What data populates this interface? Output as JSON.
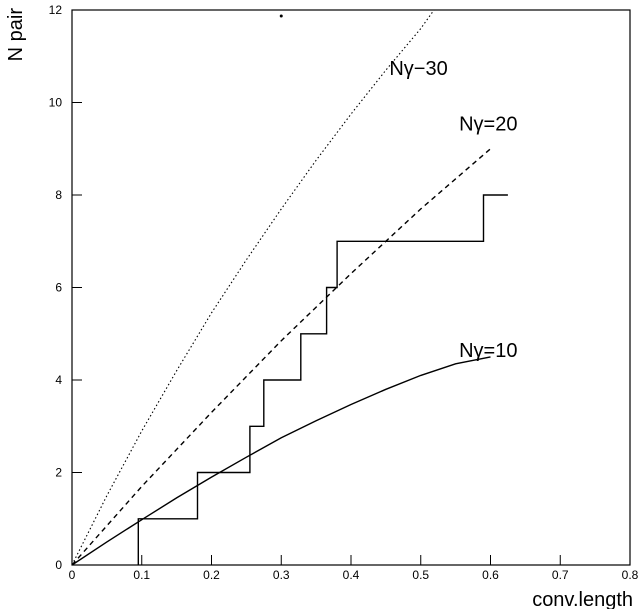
{
  "chart_data": {
    "type": "line",
    "title": "",
    "xlabel": "conv.length",
    "ylabel": "N pair",
    "xlim": [
      0,
      0.8
    ],
    "ylim": [
      0,
      12
    ],
    "x_ticks": [
      0,
      0.1,
      0.2,
      0.3,
      0.4,
      0.5,
      0.6,
      0.7,
      0.8
    ],
    "x_tick_labels": [
      "0",
      "0.1",
      "0.2",
      "0.3",
      "0.4",
      "0.5",
      "0.6",
      "0.7",
      "0.8"
    ],
    "y_ticks": [
      0,
      2,
      4,
      6,
      8,
      10,
      12
    ],
    "y_tick_labels": [
      "0",
      "2",
      "4",
      "6",
      "8",
      "10",
      "12"
    ],
    "grid": false,
    "series": [
      {
        "style": "dotted",
        "color": "#000000",
        "points": [
          [
            0,
            0
          ],
          [
            0.05,
            1.5
          ],
          [
            0.1,
            2.9
          ],
          [
            0.15,
            4.2
          ],
          [
            0.2,
            5.45
          ],
          [
            0.25,
            6.6
          ],
          [
            0.3,
            7.7
          ],
          [
            0.35,
            8.75
          ],
          [
            0.4,
            9.75
          ],
          [
            0.45,
            10.7
          ],
          [
            0.5,
            11.6
          ],
          [
            0.519,
            12
          ]
        ]
      },
      {
        "style": "dashed",
        "color": "#000000",
        "points": [
          [
            0,
            0
          ],
          [
            0.1,
            1.7
          ],
          [
            0.2,
            3.3
          ],
          [
            0.3,
            4.85
          ],
          [
            0.4,
            6.3
          ],
          [
            0.5,
            7.7
          ],
          [
            0.6,
            9.0
          ]
        ]
      },
      {
        "style": "solid",
        "color": "#000000",
        "points": [
          [
            0,
            0
          ],
          [
            0.05,
            0.5
          ],
          [
            0.1,
            0.98
          ],
          [
            0.15,
            1.45
          ],
          [
            0.2,
            1.9
          ],
          [
            0.25,
            2.33
          ],
          [
            0.3,
            2.75
          ],
          [
            0.35,
            3.12
          ],
          [
            0.4,
            3.47
          ],
          [
            0.45,
            3.8
          ],
          [
            0.5,
            4.1
          ],
          [
            0.55,
            4.35
          ],
          [
            0.6,
            4.5
          ]
        ]
      },
      {
        "style": "step",
        "color": "#000000",
        "points": [
          [
            0.095,
            0
          ],
          [
            0.095,
            1
          ],
          [
            0.18,
            1
          ],
          [
            0.18,
            2
          ],
          [
            0.255,
            2
          ],
          [
            0.255,
            3
          ],
          [
            0.275,
            3
          ],
          [
            0.275,
            4
          ],
          [
            0.328,
            4
          ],
          [
            0.328,
            5
          ],
          [
            0.365,
            5
          ],
          [
            0.365,
            6
          ],
          [
            0.38,
            6
          ],
          [
            0.38,
            7
          ],
          [
            0.59,
            7
          ],
          [
            0.59,
            8
          ],
          [
            0.625,
            8
          ]
        ]
      }
    ],
    "annotations": [
      {
        "text": "Nγ−30",
        "x": 0.455,
        "y": 10.6
      },
      {
        "text": "Nγ=20",
        "x": 0.555,
        "y": 9.4
      },
      {
        "text": "Nγ=10",
        "x": 0.555,
        "y": 4.5
      }
    ]
  }
}
